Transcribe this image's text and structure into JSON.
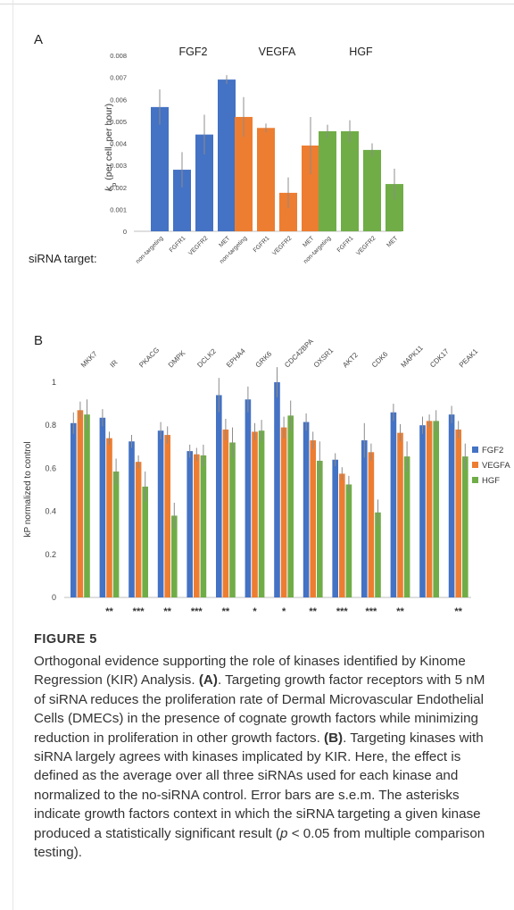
{
  "panel_a": {
    "label": "A",
    "ylabel": "kp (per cell, per hour)",
    "ylabel_k": "k",
    "ylabel_sub": "p",
    "ylabel_rest": " (per cell, per hour)",
    "xlabel": "siRNA target:",
    "group_titles": [
      "FGF2",
      "VEGFA",
      "HGF"
    ]
  },
  "panel_b": {
    "label": "B",
    "ylabel": "kP normalized to control",
    "significance": [
      "",
      "**",
      "***",
      "**",
      "***",
      "**",
      "*",
      "*",
      "**",
      "***",
      "***",
      "**",
      "",
      "**"
    ]
  },
  "chart_data": [
    {
      "type": "bar",
      "title": "",
      "ylabel": "kp (per cell, per hour)",
      "ylim": [
        0,
        0.008
      ],
      "yticks": [
        "0",
        "0.001",
        "0.002",
        "0.003",
        "0.004",
        "0.005",
        "0.006",
        "0.007",
        "0.008"
      ],
      "grid": false,
      "groups": [
        {
          "name": "FGF2",
          "color": "#4472c4",
          "categories": [
            "non-targeting",
            "FGFR1",
            "VEGFR2",
            "MET"
          ],
          "values": [
            0.00565,
            0.0028,
            0.0044,
            0.0069
          ],
          "errors": [
            0.0008,
            0.0008,
            0.0009,
            0.0002
          ]
        },
        {
          "name": "VEGFA",
          "color": "#ed7d31",
          "categories": [
            "non-targeting",
            "FGFR1",
            "VEGFR2",
            "MET"
          ],
          "values": [
            0.0052,
            0.0047,
            0.00175,
            0.0039
          ],
          "errors": [
            0.0009,
            0.0002,
            0.0007,
            0.0013
          ]
        },
        {
          "name": "HGF",
          "color": "#70ad47",
          "categories": [
            "non-targeting",
            "FGFR1",
            "VEGFR2",
            "MET"
          ],
          "values": [
            0.00455,
            0.00455,
            0.0037,
            0.00215
          ],
          "errors": [
            0.0003,
            0.0005,
            0.0003,
            0.0007
          ]
        }
      ]
    },
    {
      "type": "bar",
      "title": "",
      "ylabel": "kP normalized to control",
      "ylim": [
        0,
        1.0
      ],
      "yticks": [
        "0",
        "0.2",
        "0.4",
        "0.6",
        "0.8",
        "1"
      ],
      "grid": false,
      "legend_position": "right",
      "categories": [
        "MKK7",
        "IR",
        "PKACG",
        "DMPK",
        "DCLK2",
        "EPHA4",
        "GRK6",
        "CDC42BPA",
        "OXSR1",
        "AKT2",
        "CDK6",
        "MAPK11",
        "CDK17",
        "PEAK1"
      ],
      "series": [
        {
          "name": "FGF2",
          "color": "#4472c4",
          "values": [
            0.81,
            0.835,
            0.725,
            0.775,
            0.68,
            0.94,
            0.92,
            1.0,
            0.815,
            0.64,
            0.73,
            0.86,
            0.8,
            0.85
          ],
          "errors": [
            0.05,
            0.04,
            0.03,
            0.04,
            0.03,
            0.08,
            0.06,
            0.07,
            0.04,
            0.03,
            0.08,
            0.04,
            0.04,
            0.04
          ]
        },
        {
          "name": "VEGFA",
          "color": "#ed7d31",
          "values": [
            0.87,
            0.74,
            0.63,
            0.755,
            0.665,
            0.78,
            0.77,
            0.79,
            0.73,
            0.575,
            0.675,
            0.765,
            0.82,
            0.78
          ],
          "errors": [
            0.04,
            0.03,
            0.03,
            0.04,
            0.03,
            0.05,
            0.04,
            0.05,
            0.04,
            0.03,
            0.04,
            0.04,
            0.03,
            0.04
          ]
        },
        {
          "name": "HGF",
          "color": "#70ad47",
          "values": [
            0.85,
            0.585,
            0.515,
            0.38,
            0.66,
            0.72,
            0.775,
            0.845,
            0.635,
            0.525,
            0.395,
            0.655,
            0.82,
            0.655
          ],
          "errors": [
            0.07,
            0.06,
            0.07,
            0.06,
            0.05,
            0.07,
            0.05,
            0.07,
            0.09,
            0.04,
            0.06,
            0.07,
            0.05,
            0.06
          ]
        }
      ]
    }
  ],
  "caption": {
    "title": "FIGURE 5",
    "text_1": "Orthogonal evidence supporting the role of kinases identified by Kinome Regression (KIR) Analysis. ",
    "a_label": "(A)",
    "text_2": ". Targeting growth factor receptors with 5 nM of siRNA reduces the proliferation rate of Dermal Microvascular Endothelial Cells (DMECs) in the presence of cognate growth factors while minimizing reduction in proliferation in other growth factors. ",
    "b_label": "(B)",
    "text_3": ". Targeting kinases with siRNA largely agrees with kinases implicated by KIR. Here, the effect is defined as the average over all three siRNAs used for each kinase and normalized to the no-siRNA control. Error bars are s.e.m. The asterisks indicate growth factors context in which the siRNA targeting a given kinase produced a statistically significant result (",
    "p_italic": "p",
    "text_4": " < 0.05 from multiple comparison testing)."
  }
}
